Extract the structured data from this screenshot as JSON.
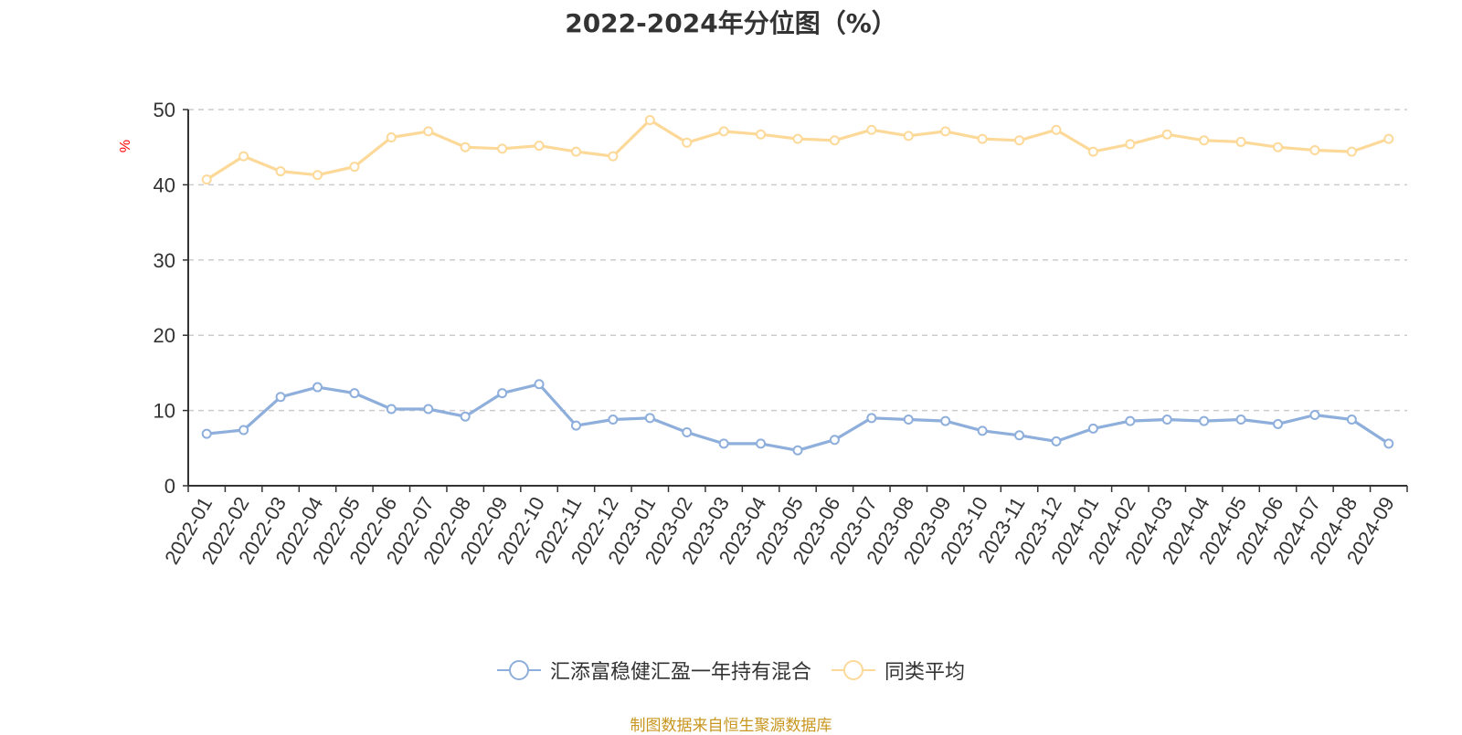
{
  "title": "2022-2024年分位图（%）",
  "source_note": "制图数据来自恒生聚源数据库",
  "chart_data": {
    "type": "line",
    "title": "2022-2024年分位图（%）",
    "ylabel": "%",
    "xlabel": "",
    "ylim": [
      0,
      50
    ],
    "yticks": [
      0,
      10,
      20,
      30,
      40,
      50
    ],
    "grid": true,
    "legend_position": "bottom",
    "categories": [
      "2022-01",
      "2022-02",
      "2022-03",
      "2022-04",
      "2022-05",
      "2022-06",
      "2022-07",
      "2022-08",
      "2022-09",
      "2022-10",
      "2022-11",
      "2022-12",
      "2023-01",
      "2023-02",
      "2023-03",
      "2023-04",
      "2023-05",
      "2023-06",
      "2023-07",
      "2023-08",
      "2023-09",
      "2023-10",
      "2023-11",
      "2023-12",
      "2024-01",
      "2024-02",
      "2024-03",
      "2024-04",
      "2024-05",
      "2024-06",
      "2024-07",
      "2024-08",
      "2024-09"
    ],
    "series": [
      {
        "name": "汇添富稳健汇盈一年持有混合",
        "color": "#8eaedb",
        "values": [
          6.9,
          7.4,
          11.8,
          13.1,
          12.3,
          10.2,
          10.2,
          9.2,
          12.3,
          13.5,
          8.0,
          8.8,
          9.0,
          7.1,
          5.6,
          5.6,
          4.7,
          6.1,
          9.0,
          8.8,
          8.6,
          7.3,
          6.7,
          5.9,
          7.6,
          8.6,
          8.8,
          8.6,
          8.8,
          8.2,
          9.4,
          8.8,
          5.6
        ]
      },
      {
        "name": "同类平均",
        "color": "#fcd999",
        "values": [
          40.7,
          43.8,
          41.8,
          41.3,
          42.4,
          46.3,
          47.1,
          45.0,
          44.8,
          45.2,
          44.4,
          43.8,
          48.6,
          45.6,
          47.1,
          46.7,
          46.1,
          45.9,
          47.3,
          46.5,
          47.1,
          46.1,
          45.9,
          47.3,
          44.4,
          45.4,
          46.7,
          45.9,
          45.7,
          45.0,
          44.6,
          44.4,
          46.1
        ]
      }
    ]
  }
}
